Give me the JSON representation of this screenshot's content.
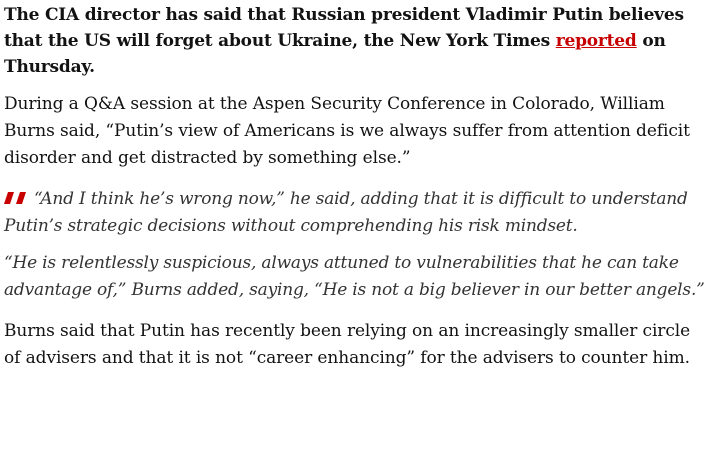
{
  "article": {
    "standfirst": {
      "before_link": "The CIA director has said that Russian president Vladimir Putin believes that the US will forget about Ukraine, the New York Times ",
      "link_text": "reported",
      "after_link": " on Thursday."
    },
    "paragraph_1": "During a Q&A session at the Aspen Security Conference in Colorado, William Burns said, “Putin’s view of Americans is we always suffer from attention deficit disorder and get distracted by something else.”",
    "quote": {
      "icon": "quote-marks-icon",
      "line_1": "“And I think he’s wrong now,” he said, adding that it is difficult to understand Putin’s strategic decisions without comprehending his risk mindset.",
      "line_2": "“He is relentlessly suspicious, always attuned to vulnerabilities that he can take advantage of,” Burns added, saying, “He is not a big believer in our better angels.”"
    },
    "paragraph_2": "Burns said that Putin has recently been relying on an increasingly smaller circle of advisers and that it is not “career enhancing” for the advisers to counter him."
  },
  "colors": {
    "accent": "#c70000",
    "text": "#121212"
  }
}
